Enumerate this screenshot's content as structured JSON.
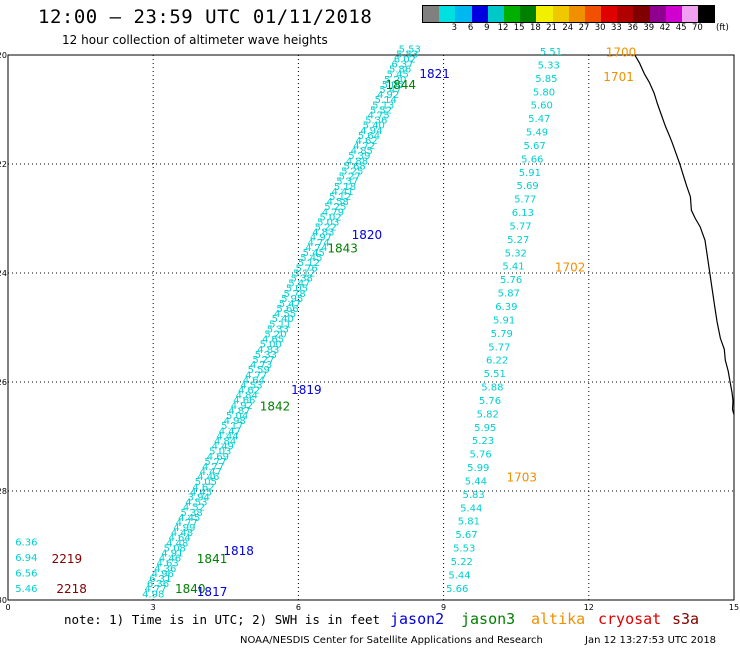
{
  "header": {
    "title": "12:00 — 23:59 UTC 01/11/2018",
    "subtitle": "12 hour collection of altimeter wave heights"
  },
  "color_scale": {
    "colors": [
      "#808080",
      "#00e0e0",
      "#00b8f0",
      "#0000e0",
      "#00c8c8",
      "#00b000",
      "#008000",
      "#f0f000",
      "#f0c800",
      "#f09000",
      "#f05000",
      "#e00000",
      "#b00000",
      "#800000",
      "#900090",
      "#d000d0",
      "#f0a0f0",
      "#000000"
    ],
    "labels": [
      "3",
      "6",
      "9",
      "12",
      "15",
      "18",
      "21",
      "24",
      "27",
      "30",
      "33",
      "36",
      "39",
      "42",
      "45",
      "70"
    ],
    "unit": "(ft)"
  },
  "map": {
    "lat_labels": [
      "-20",
      "-22",
      "-24",
      "-26",
      "-28",
      "-30"
    ],
    "lon_labels": [
      "0",
      "3",
      "6",
      "9",
      "12",
      "15"
    ],
    "coast_color": "#000000",
    "grid": "dotted"
  },
  "passes": [
    {
      "color": "#00d0d0",
      "start": [
        8.3,
        -19.95
      ],
      "end": [
        3.0,
        -29.95
      ],
      "values": [
        "5.53",
        "5.53",
        "6.02",
        "6.37",
        "5.86",
        "5.45",
        "5.20",
        "5.05",
        "5.47",
        "4.92",
        "5.14",
        "5.13",
        "5.52",
        "4.75",
        "5.36",
        "5.40",
        "4.94",
        "5.64",
        "4.62",
        "4.72",
        "4.85",
        "5.39",
        "4.88",
        "5.68",
        "5.25",
        "5.27",
        "5.37",
        "5.18",
        "4.41",
        "5.12",
        "4.58",
        "5.25",
        "4.79",
        "5.02",
        "5.03",
        "5.22",
        "4.83",
        "4.97",
        "4.74",
        "4.74",
        "5.45",
        "5.45",
        "5.12",
        "5.76",
        "5.12",
        "5.38",
        "5.47",
        "5.05",
        "5.78",
        "5.95",
        "5.47",
        "5.66",
        "4.55",
        "5.40",
        "5.11",
        "5.33",
        "5.20",
        "4.65",
        "5.00",
        "4.83",
        "5.33",
        "5.27",
        "4.73",
        "5.59",
        "4.77",
        "4.64",
        "4.53",
        "4.62",
        "4.84",
        "4.66",
        "4.92",
        "4.87",
        "5.04",
        "4.98",
        "5.17",
        "4.47",
        "4.44",
        "4.84",
        "4.49",
        "5.03",
        "4.69",
        "5.77",
        "4.77",
        "4.47",
        "4.46",
        "5.05",
        "4.62",
        "4.45",
        "3.94",
        "4.53",
        "4.52",
        "5.38",
        "4.45",
        "4.77",
        "4.99",
        "4.48",
        "4.64",
        "4.48",
        "5.08",
        "4.91",
        "4.46",
        "4.63",
        "4.36",
        "4.96",
        "6.31",
        "6.36",
        "4.77",
        "4.98"
      ]
    },
    {
      "color": "#00d0d0",
      "start": [
        11.22,
        -20.0
      ],
      "end": [
        9.28,
        -29.85
      ],
      "values": [
        "5.51",
        "5.33",
        "5.85",
        "5.80",
        "5.60",
        "5.47",
        "5.49",
        "5.67",
        "5.66",
        "5.91",
        "5.69",
        "5.77",
        "6.13",
        "5.77",
        "5.27",
        "5.32",
        "5.41",
        "5.76",
        "5.87",
        "6.39",
        "5.91",
        "5.79",
        "5.77",
        "6.22",
        "5.51",
        "5.88",
        "5.76",
        "5.82",
        "5.95",
        "5.23",
        "5.76",
        "5.99",
        "5.44",
        "5.83",
        "5.44",
        "5.81",
        "5.67",
        "5.53",
        "5.22",
        "5.44",
        "5.66"
      ]
    },
    {
      "color": "#00d0d0",
      "start": [
        0.38,
        -29.0
      ],
      "end": [
        0.38,
        -29.85
      ],
      "values": [
        "6.36",
        "6.94",
        "6.56",
        "5.46"
      ]
    }
  ],
  "time_labels": [
    {
      "text": "1700",
      "lon": 12.35,
      "lat": -19.95,
      "color": "#f09000"
    },
    {
      "text": "1701",
      "lon": 12.3,
      "lat": -20.4,
      "color": "#f09000"
    },
    {
      "text": "1702",
      "lon": 11.3,
      "lat": -23.9,
      "color": "#f09000"
    },
    {
      "text": "1703",
      "lon": 10.3,
      "lat": -27.75,
      "color": "#f09000"
    },
    {
      "text": "1821",
      "lon": 8.5,
      "lat": -20.35,
      "color": "#0000e0"
    },
    {
      "text": "1844",
      "lon": 7.8,
      "lat": -20.55,
      "color": "#008000"
    },
    {
      "text": "1820",
      "lon": 7.1,
      "lat": -23.3,
      "color": "#0000e0"
    },
    {
      "text": "1843",
      "lon": 6.6,
      "lat": -23.55,
      "color": "#008000"
    },
    {
      "text": "1819",
      "lon": 5.85,
      "lat": -26.15,
      "color": "#0000e0"
    },
    {
      "text": "1842",
      "lon": 5.2,
      "lat": -26.45,
      "color": "#008000"
    },
    {
      "text": "1818",
      "lon": 4.45,
      "lat": -29.1,
      "color": "#0000e0"
    },
    {
      "text": "1841",
      "lon": 3.9,
      "lat": -29.25,
      "color": "#008000"
    },
    {
      "text": "1840",
      "lon": 3.45,
      "lat": -29.8,
      "color": "#008000"
    },
    {
      "text": "1817",
      "lon": 3.9,
      "lat": -29.85,
      "color": "#0000e0"
    },
    {
      "text": "2219",
      "lon": 0.9,
      "lat": -29.25,
      "color": "#800000"
    },
    {
      "text": "2218",
      "lon": 1.0,
      "lat": -29.8,
      "color": "#800000"
    }
  ],
  "footer": {
    "note": "note: 1) Time is in UTC; 2) SWH is in feet",
    "satellites": [
      {
        "name": "jason2",
        "color": "#0000e0"
      },
      {
        "name": "jason3",
        "color": "#008000"
      },
      {
        "name": "altika",
        "color": "#f09000"
      },
      {
        "name": "cryosat",
        "color": "#e00000"
      },
      {
        "name": "s3a",
        "color": "#800000"
      }
    ],
    "credit": "NOAA/NESDIS Center for Satellite Applications and Research",
    "timestamp": "Jan 12 13:27:53 UTC 2018"
  }
}
